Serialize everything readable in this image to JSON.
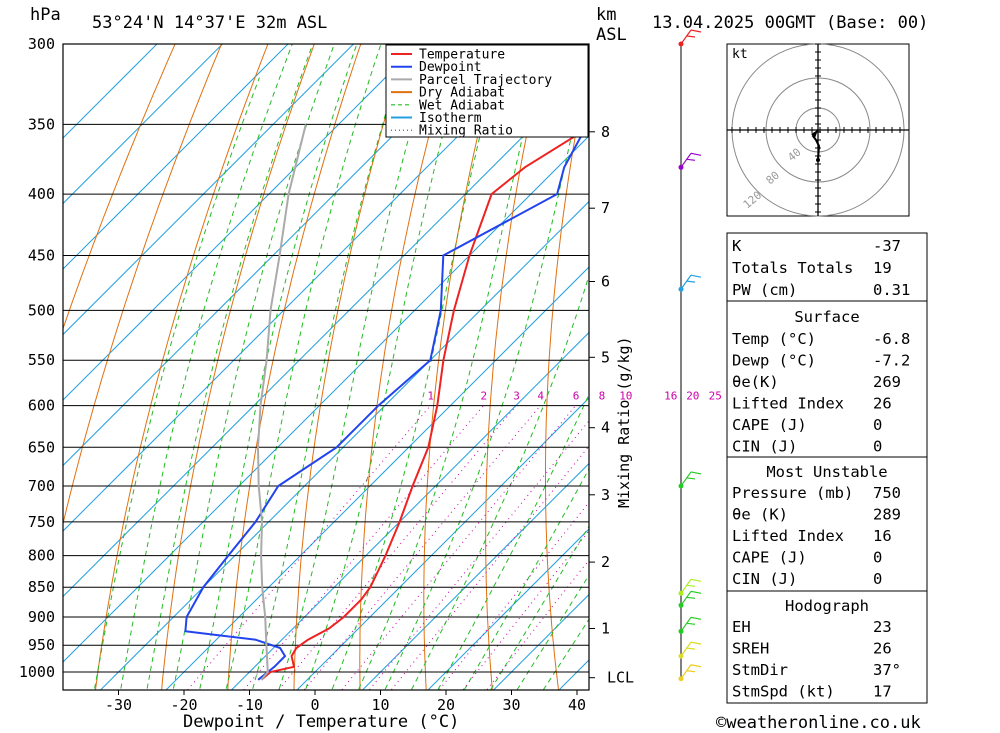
{
  "header": {
    "unit_pressure": "hPa",
    "location": "53°24'N  14°37'E  32m  ASL",
    "unit_height": "km",
    "unit_height2": "ASL",
    "datetime": "13.04.2025  00GMT  (Base: 00)"
  },
  "chart_data": {
    "type": "line",
    "title": "",
    "xlabel": "Dewpoint / Temperature (°C)",
    "ylabel": "hPa",
    "xlim": [
      -38,
      41
    ],
    "ylim": [
      1020,
      300
    ],
    "y_scale": "log",
    "skew": "45°",
    "pressure_ticks": [
      300,
      350,
      400,
      450,
      500,
      550,
      600,
      650,
      700,
      750,
      800,
      850,
      900,
      950,
      1000
    ],
    "temp_ticks": [
      -30,
      -20,
      -10,
      0,
      10,
      20,
      30,
      40
    ],
    "height_labels": [
      {
        "km": "8",
        "p": 355
      },
      {
        "km": "7",
        "p": 411
      },
      {
        "km": "6",
        "p": 473
      },
      {
        "km": "5",
        "p": 547
      },
      {
        "km": "4",
        "p": 626
      },
      {
        "km": "3",
        "p": 712
      },
      {
        "km": "2",
        "p": 810
      },
      {
        "km": "1",
        "p": 920
      },
      {
        "km": "LCL",
        "p": 1011
      }
    ],
    "mixing_ratio_label": "Mixing Ratio (g/kg)",
    "mixing_ratios": [
      "1",
      "2",
      "3",
      "4",
      "6",
      "8",
      "10",
      "16",
      "20",
      "25"
    ],
    "legend_position": "top-right",
    "legend": [
      {
        "name": "Temperature",
        "color": "#ee2222",
        "style": "solid"
      },
      {
        "name": "Dewpoint",
        "color": "#2244ee",
        "style": "solid"
      },
      {
        "name": "Parcel Trajectory",
        "color": "#aaaaaa",
        "style": "solid"
      },
      {
        "name": "Dry Adiabat",
        "color": "#e07010",
        "style": "solid"
      },
      {
        "name": "Wet Adiabat",
        "color": "#22bb22",
        "style": "dashed"
      },
      {
        "name": "Isotherm",
        "color": "#22a0e0",
        "style": "solid"
      },
      {
        "name": "Mixing Ratio",
        "color": "#cc00aa",
        "style": "dotted"
      }
    ],
    "series": [
      {
        "name": "Temperature",
        "color": "#ee2222",
        "points": [
          [
            1015,
            -7
          ],
          [
            1000,
            -6.8
          ],
          [
            990,
            -4
          ],
          [
            970,
            -6
          ],
          [
            955,
            -6.5
          ],
          [
            940,
            -6
          ],
          [
            920,
            -4.5
          ],
          [
            900,
            -4
          ],
          [
            870,
            -4
          ],
          [
            850,
            -4.5
          ],
          [
            800,
            -7
          ],
          [
            750,
            -10
          ],
          [
            700,
            -13.5
          ],
          [
            650,
            -17
          ],
          [
            600,
            -22
          ],
          [
            550,
            -28
          ],
          [
            500,
            -34
          ],
          [
            450,
            -40
          ],
          [
            400,
            -46
          ],
          [
            380,
            -45
          ],
          [
            350,
            -41
          ],
          [
            325,
            -43
          ],
          [
            300,
            -47
          ]
        ]
      },
      {
        "name": "Dewpoint",
        "color": "#2244ee",
        "points": [
          [
            1015,
            -7.5
          ],
          [
            1000,
            -7.2
          ],
          [
            990,
            -7
          ],
          [
            970,
            -7
          ],
          [
            955,
            -9
          ],
          [
            940,
            -14
          ],
          [
            925,
            -26
          ],
          [
            900,
            -28
          ],
          [
            850,
            -30
          ],
          [
            800,
            -31
          ],
          [
            750,
            -32
          ],
          [
            700,
            -34
          ],
          [
            650,
            -31
          ],
          [
            600,
            -31
          ],
          [
            550,
            -30
          ],
          [
            500,
            -36
          ],
          [
            450,
            -44
          ],
          [
            400,
            -36
          ],
          [
            380,
            -39
          ],
          [
            350,
            -42
          ],
          [
            300,
            -55
          ]
        ]
      },
      {
        "name": "Parcel Trajectory",
        "color": "#aaaaaa",
        "points": [
          [
            1015,
            -7
          ],
          [
            1000,
            -7.2
          ],
          [
            950,
            -11.5
          ],
          [
            900,
            -16
          ],
          [
            850,
            -21
          ],
          [
            800,
            -26
          ],
          [
            750,
            -31
          ],
          [
            700,
            -37
          ],
          [
            650,
            -43
          ],
          [
            600,
            -49
          ],
          [
            550,
            -55
          ],
          [
            500,
            -62
          ],
          [
            450,
            -69
          ],
          [
            400,
            -77
          ],
          [
            350,
            -85
          ]
        ]
      }
    ],
    "wind_barbs": [
      {
        "p": 300,
        "color": "#ee2222"
      },
      {
        "p": 380,
        "color": "#9900cc"
      },
      {
        "p": 480,
        "color": "#22a0e0"
      },
      {
        "p": 700,
        "color": "#22cc22"
      },
      {
        "p": 860,
        "color": "#aaee22"
      },
      {
        "p": 880,
        "color": "#22cc22"
      },
      {
        "p": 925,
        "color": "#22cc22"
      },
      {
        "p": 970,
        "color": "#dddd22"
      },
      {
        "p": 1013,
        "color": "#eecc22"
      }
    ]
  },
  "hodograph": {
    "unit": "kt",
    "rings": [
      "40",
      "80",
      "120"
    ]
  },
  "indices": {
    "rows": [
      {
        "label": "K",
        "value": "-37"
      },
      {
        "label": "Totals Totals",
        "value": "19"
      },
      {
        "label": "PW (cm)",
        "value": "0.31"
      }
    ]
  },
  "surface": {
    "title": "Surface",
    "rows": [
      {
        "label": "Temp (°C)",
        "value": "-6.8"
      },
      {
        "label": "Dewp (°C)",
        "value": "-7.2"
      },
      {
        "label": "θe(K)",
        "value": "269"
      },
      {
        "label": "Lifted Index",
        "value": "26"
      },
      {
        "label": "CAPE (J)",
        "value": "0"
      },
      {
        "label": "CIN (J)",
        "value": "0"
      }
    ]
  },
  "most_unstable": {
    "title": "Most Unstable",
    "rows": [
      {
        "label": "Pressure (mb)",
        "value": "750"
      },
      {
        "label": "θe (K)",
        "value": "289"
      },
      {
        "label": "Lifted Index",
        "value": "16"
      },
      {
        "label": "CAPE (J)",
        "value": "0"
      },
      {
        "label": "CIN (J)",
        "value": "0"
      }
    ]
  },
  "hodograph_params": {
    "title": "Hodograph",
    "rows": [
      {
        "label": "EH",
        "value": "23"
      },
      {
        "label": "SREH",
        "value": "26"
      },
      {
        "label": "StmDir",
        "value": "37°"
      },
      {
        "label": "StmSpd (kt)",
        "value": "17"
      }
    ]
  },
  "footer": {
    "copyright": "©weatheronline.co.uk"
  }
}
